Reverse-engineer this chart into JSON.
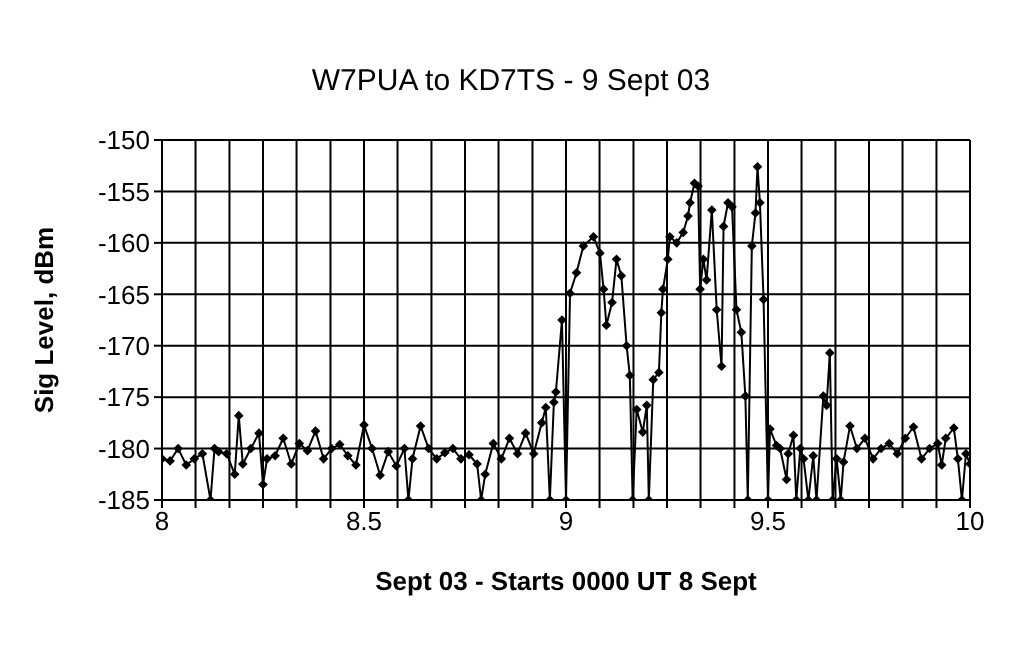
{
  "chart_data": {
    "type": "line",
    "title": "W7PUA to KD7TS - 9 Sept 03",
    "xlabel": "Sept 03 - Starts 0000 UT 8 Sept",
    "ylabel": "Sig Level, dBm",
    "x": [
      8.0,
      8.02,
      8.04,
      8.06,
      8.08,
      8.1,
      8.12,
      8.13,
      8.14,
      8.16,
      8.18,
      8.19,
      8.2,
      8.22,
      8.24,
      8.25,
      8.26,
      8.28,
      8.3,
      8.32,
      8.34,
      8.36,
      8.38,
      8.4,
      8.42,
      8.44,
      8.46,
      8.48,
      8.5,
      8.52,
      8.54,
      8.56,
      8.58,
      8.6,
      8.61,
      8.62,
      8.64,
      8.66,
      8.68,
      8.7,
      8.72,
      8.74,
      8.76,
      8.78,
      8.79,
      8.8,
      8.82,
      8.84,
      8.86,
      8.88,
      8.9,
      8.92,
      8.94,
      8.95,
      8.96,
      8.97,
      8.975,
      8.99,
      9.0,
      9.01,
      9.026,
      9.043,
      9.068,
      9.084,
      9.093,
      9.1,
      9.114,
      9.125,
      9.137,
      9.15,
      9.158,
      9.165,
      9.175,
      9.19,
      9.2,
      9.205,
      9.216,
      9.23,
      9.236,
      9.24,
      9.252,
      9.257,
      9.274,
      9.29,
      9.302,
      9.307,
      9.318,
      9.327,
      9.332,
      9.34,
      9.348,
      9.361,
      9.373,
      9.385,
      9.39,
      9.401,
      9.411,
      9.422,
      9.434,
      9.444,
      9.45,
      9.46,
      9.469,
      9.474,
      9.48,
      9.489,
      9.5,
      9.505,
      9.521,
      9.53,
      9.546,
      9.55,
      9.563,
      9.57,
      9.58,
      9.588,
      9.6,
      9.612,
      9.62,
      9.637,
      9.645,
      9.653,
      9.66,
      9.67,
      9.68,
      9.687,
      9.703,
      9.72,
      9.74,
      9.76,
      9.78,
      9.8,
      9.82,
      9.84,
      9.86,
      9.88,
      9.9,
      9.92,
      9.93,
      9.94,
      9.96,
      9.97,
      9.98,
      9.99,
      10.0
    ],
    "series": [
      {
        "color": "#000000",
        "values": [
          -181,
          -181.2,
          -180,
          -181.6,
          -181,
          -180.5,
          -185,
          -180,
          -180.3,
          -180.5,
          -182.5,
          -176.8,
          -181.5,
          -180,
          -178.5,
          -183.5,
          -181,
          -180.7,
          -179,
          -181.5,
          -179.5,
          -180.2,
          -178.3,
          -181,
          -180,
          -179.6,
          -180.7,
          -181.6,
          -177.7,
          -180,
          -182.6,
          -180.3,
          -181.7,
          -180,
          -185,
          -181,
          -177.8,
          -180,
          -181,
          -180.4,
          -180,
          -181,
          -180.6,
          -181.5,
          -185,
          -182.5,
          -179.5,
          -181,
          -179,
          -180.5,
          -178.5,
          -180.5,
          -177.5,
          -176,
          -185,
          -175.5,
          -174.5,
          -167.5,
          -185,
          -164.9,
          -162.9,
          -160.3,
          -159.4,
          -161,
          -164.5,
          -168,
          -165.8,
          -161.6,
          -163.2,
          -170,
          -172.9,
          -185,
          -176.2,
          -178.4,
          -175.8,
          -185,
          -173.3,
          -172.6,
          -166.8,
          -164.5,
          -161.6,
          -159.4,
          -160,
          -159,
          -157.4,
          -156.1,
          -154.2,
          -154.5,
          -164.5,
          -161.6,
          -163.6,
          -156.8,
          -166.5,
          -172,
          -158.4,
          -156.1,
          -156.5,
          -166.5,
          -168.7,
          -174.9,
          -185,
          -160.3,
          -157.1,
          -152.6,
          -156.1,
          -165.5,
          -185,
          -178.1,
          -179.7,
          -180,
          -183,
          -180.5,
          -178.7,
          -185,
          -180,
          -181,
          -185,
          -180.7,
          -185,
          -174.9,
          -175.8,
          -170.7,
          -185,
          -181,
          -185,
          -181.3,
          -177.8,
          -180,
          -179,
          -181,
          -180,
          -179.5,
          -180.5,
          -179,
          -177.9,
          -181,
          -180,
          -179.5,
          -181.6,
          -179,
          -178,
          -181,
          -185,
          -180.5,
          -181.5
        ]
      }
    ],
    "xlim": [
      8,
      10
    ],
    "ylim": [
      -185,
      -150
    ],
    "xticks": [
      8,
      {
        "value": 8.083,
        "label": null
      },
      {
        "value": 8.167,
        "label": null
      },
      {
        "value": 8.25,
        "label": null
      },
      {
        "value": 8.333,
        "label": null
      },
      {
        "value": 8.417,
        "label": null
      },
      8.5,
      {
        "value": 8.583,
        "label": null
      },
      {
        "value": 8.667,
        "label": null
      },
      {
        "value": 8.75,
        "label": null
      },
      {
        "value": 8.833,
        "label": null
      },
      {
        "value": 8.917,
        "label": null
      },
      9,
      {
        "value": 9.083,
        "label": null
      },
      {
        "value": 9.167,
        "label": null
      },
      {
        "value": 9.25,
        "label": null
      },
      {
        "value": 9.333,
        "label": null
      },
      {
        "value": 9.417,
        "label": null
      },
      9.5,
      {
        "value": 9.583,
        "label": null
      },
      {
        "value": 9.667,
        "label": null
      },
      {
        "value": 9.75,
        "label": null
      },
      {
        "value": 9.833,
        "label": null
      },
      {
        "value": 9.917,
        "label": null
      },
      10
    ],
    "yticks": [
      -185,
      -180,
      -175,
      -170,
      -165,
      -160,
      -155,
      -150
    ],
    "grid": true,
    "marker": "diamond"
  }
}
